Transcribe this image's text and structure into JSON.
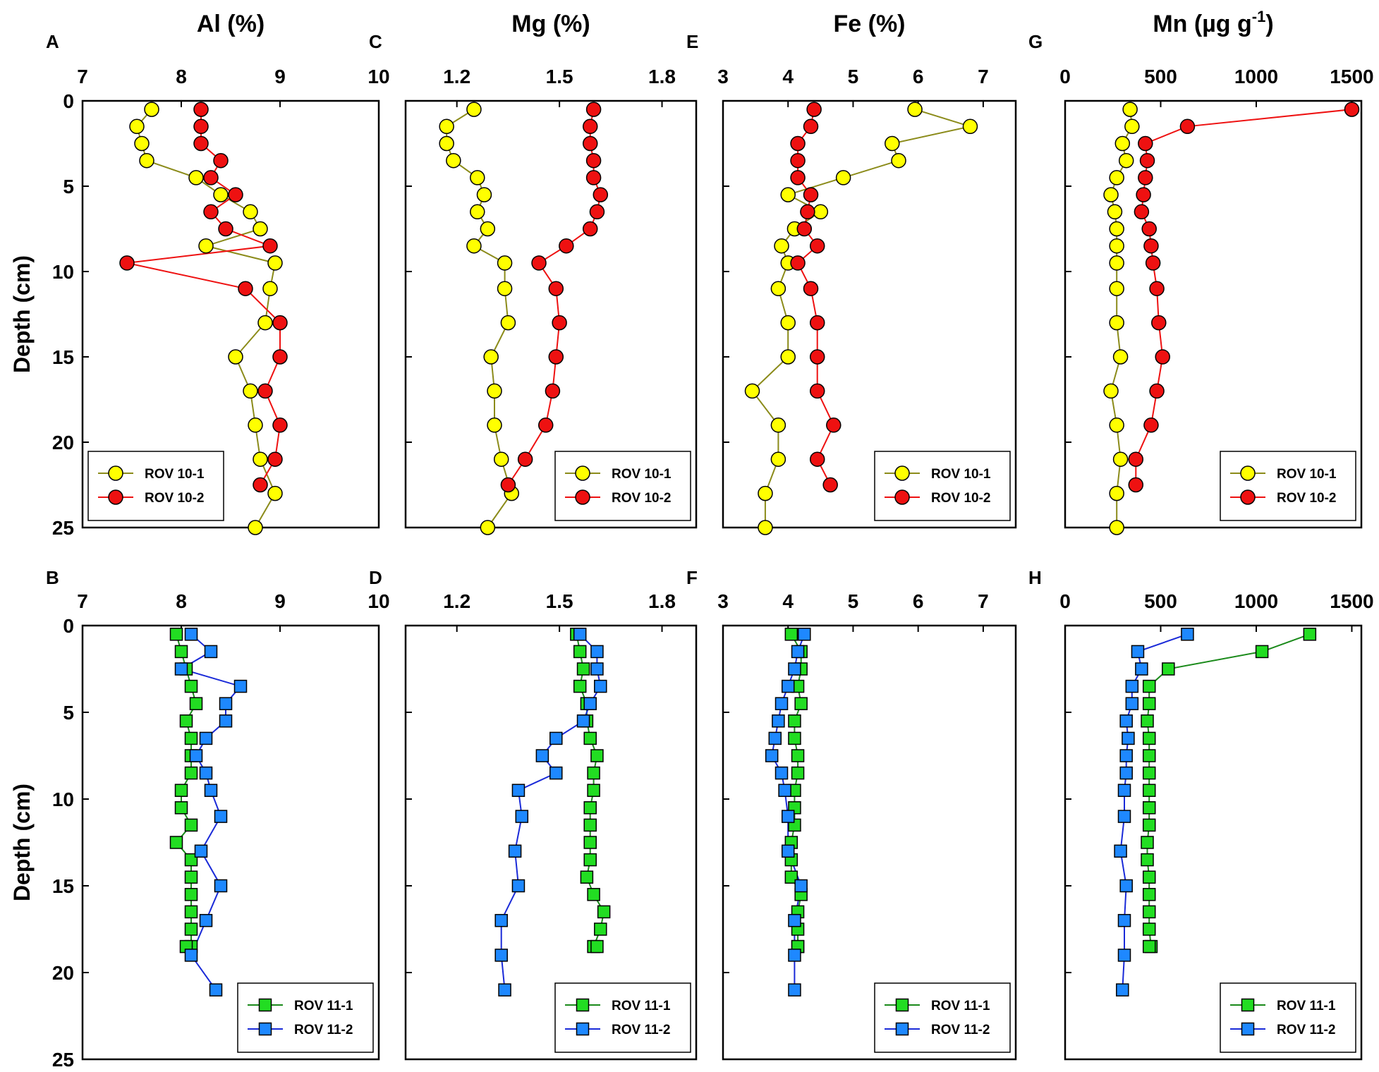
{
  "chart_data": [
    {
      "type": "scatter",
      "panel": "A",
      "title": "Al (%)",
      "ylabel": "Depth (cm)",
      "xlim": [
        7,
        10
      ],
      "xticks": [
        "7",
        "8",
        "9",
        "10"
      ],
      "ylim": [
        0,
        25
      ],
      "yticks": [
        "0",
        "5",
        "10",
        "15",
        "20",
        "25"
      ],
      "legend": "bottom-left",
      "series": [
        {
          "name": "ROV 10-1",
          "marker": "circle",
          "fill": "#ffff00",
          "line": "#8b8b1a",
          "x": [
            7.7,
            7.55,
            7.6,
            7.65,
            8.15,
            8.4,
            8.7,
            8.8,
            8.25,
            8.95,
            8.9,
            8.85,
            8.55,
            8.7,
            8.75,
            8.8,
            8.95,
            8.75
          ],
          "y": [
            0.5,
            1.5,
            2.5,
            3.5,
            4.5,
            5.5,
            6.5,
            7.5,
            8.5,
            9.5,
            11,
            13,
            15,
            17,
            19,
            21,
            23,
            25
          ]
        },
        {
          "name": "ROV 10-2",
          "marker": "circle",
          "fill": "#ee1111",
          "line": "#ee1111",
          "x": [
            8.2,
            8.2,
            8.2,
            8.4,
            8.3,
            8.55,
            8.3,
            8.45,
            8.9,
            7.45,
            8.65,
            9.0,
            9.0,
            8.85,
            9.0,
            8.95,
            8.8
          ],
          "y": [
            0.5,
            1.5,
            2.5,
            3.5,
            4.5,
            5.5,
            6.5,
            7.5,
            8.5,
            9.5,
            11,
            13,
            15,
            17,
            19,
            21,
            22.5
          ]
        }
      ]
    },
    {
      "type": "scatter",
      "panel": "C",
      "title": "Mg (%)",
      "xlim": [
        1.05,
        1.9
      ],
      "xticks": [
        "1.2",
        "1.5",
        "1.8"
      ],
      "ylim": [
        0,
        25
      ],
      "legend": "bottom-right",
      "series": [
        {
          "name": "ROV 10-1",
          "marker": "circle",
          "fill": "#ffff00",
          "line": "#8b8b1a",
          "x": [
            1.25,
            1.17,
            1.17,
            1.19,
            1.26,
            1.28,
            1.26,
            1.29,
            1.25,
            1.34,
            1.34,
            1.35,
            1.3,
            1.31,
            1.31,
            1.33,
            1.36,
            1.29
          ],
          "y": [
            0.5,
            1.5,
            2.5,
            3.5,
            4.5,
            5.5,
            6.5,
            7.5,
            8.5,
            9.5,
            11,
            13,
            15,
            17,
            19,
            21,
            23,
            25
          ]
        },
        {
          "name": "ROV 10-2",
          "marker": "circle",
          "fill": "#ee1111",
          "line": "#ee1111",
          "x": [
            1.6,
            1.59,
            1.59,
            1.6,
            1.6,
            1.62,
            1.61,
            1.59,
            1.52,
            1.44,
            1.49,
            1.5,
            1.49,
            1.48,
            1.46,
            1.4,
            1.35
          ],
          "y": [
            0.5,
            1.5,
            2.5,
            3.5,
            4.5,
            5.5,
            6.5,
            7.5,
            8.5,
            9.5,
            11,
            13,
            15,
            17,
            19,
            21,
            22.5
          ]
        }
      ]
    },
    {
      "type": "scatter",
      "panel": "E",
      "title": "Fe (%)",
      "xlim": [
        3,
        7.5
      ],
      "xticks": [
        "3",
        "4",
        "5",
        "6",
        "7"
      ],
      "ylim": [
        0,
        25
      ],
      "legend": "bottom-right",
      "series": [
        {
          "name": "ROV 10-1",
          "marker": "circle",
          "fill": "#ffff00",
          "line": "#8b8b1a",
          "x": [
            5.95,
            6.8,
            5.6,
            5.7,
            4.85,
            4.0,
            4.5,
            4.1,
            3.9,
            4.0,
            3.85,
            4.0,
            4.0,
            3.45,
            3.85,
            3.85,
            3.65,
            3.65
          ],
          "y": [
            0.5,
            1.5,
            2.5,
            3.5,
            4.5,
            5.5,
            6.5,
            7.5,
            8.5,
            9.5,
            11,
            13,
            15,
            17,
            19,
            21,
            23,
            25
          ]
        },
        {
          "name": "ROV 10-2",
          "marker": "circle",
          "fill": "#ee1111",
          "line": "#ee1111",
          "x": [
            4.4,
            4.35,
            4.15,
            4.15,
            4.15,
            4.35,
            4.3,
            4.25,
            4.45,
            4.15,
            4.35,
            4.45,
            4.45,
            4.45,
            4.7,
            4.45,
            4.65
          ],
          "y": [
            0.5,
            1.5,
            2.5,
            3.5,
            4.5,
            5.5,
            6.5,
            7.5,
            8.5,
            9.5,
            11,
            13,
            15,
            17,
            19,
            21,
            22.5
          ]
        }
      ]
    },
    {
      "type": "scatter",
      "panel": "G",
      "title": "Mn (µg g-1)",
      "xlim": [
        0,
        1550
      ],
      "xticks": [
        "0",
        "500",
        "1000",
        "1500"
      ],
      "ylim": [
        0,
        25
      ],
      "legend": "bottom-right",
      "series": [
        {
          "name": "ROV 10-1",
          "marker": "circle",
          "fill": "#ffff00",
          "line": "#8b8b1a",
          "x": [
            340,
            350,
            300,
            320,
            270,
            240,
            260,
            270,
            270,
            270,
            270,
            270,
            290,
            240,
            270,
            290,
            270,
            270
          ],
          "y": [
            0.5,
            1.5,
            2.5,
            3.5,
            4.5,
            5.5,
            6.5,
            7.5,
            8.5,
            9.5,
            11,
            13,
            15,
            17,
            19,
            21,
            23,
            25
          ]
        },
        {
          "name": "ROV 10-2",
          "marker": "circle",
          "fill": "#ee1111",
          "line": "#ee1111",
          "x": [
            1500,
            640,
            420,
            430,
            420,
            410,
            400,
            440,
            450,
            460,
            480,
            490,
            510,
            480,
            450,
            370,
            370
          ],
          "y": [
            0.5,
            1.5,
            2.5,
            3.5,
            4.5,
            5.5,
            6.5,
            7.5,
            8.5,
            9.5,
            11,
            13,
            15,
            17,
            19,
            21,
            22.5
          ]
        }
      ]
    },
    {
      "type": "scatter",
      "panel": "B",
      "title": "",
      "ylabel": "Depth (cm)",
      "xlim": [
        7,
        10
      ],
      "xticks": [
        "7",
        "8",
        "9",
        "10"
      ],
      "ylim": [
        0,
        25
      ],
      "yticks": [
        "0",
        "5",
        "10",
        "15",
        "20",
        "25"
      ],
      "legend": "bottom-right",
      "series": [
        {
          "name": "ROV 11-1",
          "marker": "square",
          "fill": "#22dd22",
          "line": "#1a8a1a",
          "x": [
            7.95,
            8.0,
            8.05,
            8.1,
            8.15,
            8.05,
            8.1,
            8.1,
            8.1,
            8.0,
            8.0,
            8.1,
            7.95,
            8.1,
            8.1,
            8.1,
            8.1,
            8.1,
            8.1,
            8.05
          ],
          "y": [
            0.5,
            1.5,
            2.5,
            3.5,
            4.5,
            5.5,
            6.5,
            7.5,
            8.5,
            9.5,
            10.5,
            11.5,
            12.5,
            13.5,
            14.5,
            15.5,
            16.5,
            17.5,
            18.5,
            18.5
          ]
        },
        {
          "name": "ROV 11-2",
          "marker": "square",
          "fill": "#1e88ff",
          "line": "#1a2ad8",
          "x": [
            8.1,
            8.3,
            8.0,
            8.6,
            8.45,
            8.45,
            8.25,
            8.15,
            8.25,
            8.3,
            8.4,
            8.2,
            8.4,
            8.25,
            8.1,
            8.35
          ],
          "y": [
            0.5,
            1.5,
            2.5,
            3.5,
            4.5,
            5.5,
            6.5,
            7.5,
            8.5,
            9.5,
            11,
            13,
            15,
            17,
            19,
            21
          ]
        }
      ]
    },
    {
      "type": "scatter",
      "panel": "D",
      "title": "",
      "xlim": [
        1.05,
        1.9
      ],
      "xticks": [
        "1.2",
        "1.5",
        "1.8"
      ],
      "ylim": [
        0,
        25
      ],
      "legend": "bottom-right",
      "series": [
        {
          "name": "ROV 11-1",
          "marker": "square",
          "fill": "#22dd22",
          "line": "#1a8a1a",
          "x": [
            1.55,
            1.56,
            1.57,
            1.56,
            1.58,
            1.58,
            1.59,
            1.61,
            1.6,
            1.6,
            1.59,
            1.59,
            1.59,
            1.59,
            1.58,
            1.6,
            1.63,
            1.62,
            1.6,
            1.61
          ],
          "y": [
            0.5,
            1.5,
            2.5,
            3.5,
            4.5,
            5.5,
            6.5,
            7.5,
            8.5,
            9.5,
            10.5,
            11.5,
            12.5,
            13.5,
            14.5,
            15.5,
            16.5,
            17.5,
            18.5,
            18.5
          ]
        },
        {
          "name": "ROV 11-2",
          "marker": "square",
          "fill": "#1e88ff",
          "line": "#1a2ad8",
          "x": [
            1.56,
            1.61,
            1.61,
            1.62,
            1.59,
            1.57,
            1.49,
            1.45,
            1.49,
            1.38,
            1.39,
            1.37,
            1.38,
            1.33,
            1.33,
            1.34
          ],
          "y": [
            0.5,
            1.5,
            2.5,
            3.5,
            4.5,
            5.5,
            6.5,
            7.5,
            8.5,
            9.5,
            11,
            13,
            15,
            17,
            19,
            21
          ]
        }
      ]
    },
    {
      "type": "scatter",
      "panel": "F",
      "title": "",
      "xlim": [
        3,
        7.5
      ],
      "xticks": [
        "3",
        "4",
        "5",
        "6",
        "7"
      ],
      "ylim": [
        0,
        25
      ],
      "legend": "bottom-right",
      "series": [
        {
          "name": "ROV 11-1",
          "marker": "square",
          "fill": "#22dd22",
          "line": "#1a8a1a",
          "x": [
            4.05,
            4.2,
            4.2,
            4.15,
            4.2,
            4.1,
            4.1,
            4.15,
            4.15,
            4.1,
            4.1,
            4.1,
            4.05,
            4.05,
            4.05,
            4.2,
            4.15,
            4.15,
            4.15,
            4.15
          ],
          "y": [
            0.5,
            1.5,
            2.5,
            3.5,
            4.5,
            5.5,
            6.5,
            7.5,
            8.5,
            9.5,
            10.5,
            11.5,
            12.5,
            13.5,
            14.5,
            15.5,
            16.5,
            17.5,
            18.5,
            18.5
          ]
        },
        {
          "name": "ROV 11-2",
          "marker": "square",
          "fill": "#1e88ff",
          "line": "#1a2ad8",
          "x": [
            4.25,
            4.15,
            4.1,
            4.0,
            3.9,
            3.85,
            3.8,
            3.75,
            3.9,
            3.95,
            4.0,
            4.0,
            4.2,
            4.1,
            4.1,
            4.1
          ],
          "y": [
            0.5,
            1.5,
            2.5,
            3.5,
            4.5,
            5.5,
            6.5,
            7.5,
            8.5,
            9.5,
            11,
            13,
            15,
            17,
            19,
            21
          ]
        }
      ]
    },
    {
      "type": "scatter",
      "panel": "H",
      "title": "",
      "xlim": [
        0,
        1550
      ],
      "xticks": [
        "0",
        "500",
        "1000",
        "1500"
      ],
      "ylim": [
        0,
        25
      ],
      "legend": "bottom-right",
      "series": [
        {
          "name": "ROV 11-1",
          "marker": "square",
          "fill": "#22dd22",
          "line": "#1a8a1a",
          "x": [
            1280,
            1030,
            540,
            440,
            440,
            430,
            440,
            440,
            440,
            440,
            440,
            440,
            430,
            430,
            440,
            440,
            440,
            440,
            450,
            440
          ],
          "y": [
            0.5,
            1.5,
            2.5,
            3.5,
            4.5,
            5.5,
            6.5,
            7.5,
            8.5,
            9.5,
            10.5,
            11.5,
            12.5,
            13.5,
            14.5,
            15.5,
            16.5,
            17.5,
            18.5,
            18.5
          ]
        },
        {
          "name": "ROV 11-2",
          "marker": "square",
          "fill": "#1e88ff",
          "line": "#1a2ad8",
          "x": [
            640,
            380,
            400,
            350,
            350,
            320,
            330,
            320,
            320,
            310,
            310,
            290,
            320,
            310,
            310,
            300
          ],
          "y": [
            0.5,
            1.5,
            2.5,
            3.5,
            4.5,
            5.5,
            6.5,
            7.5,
            8.5,
            9.5,
            11,
            13,
            15,
            17,
            19,
            21
          ]
        }
      ]
    }
  ]
}
